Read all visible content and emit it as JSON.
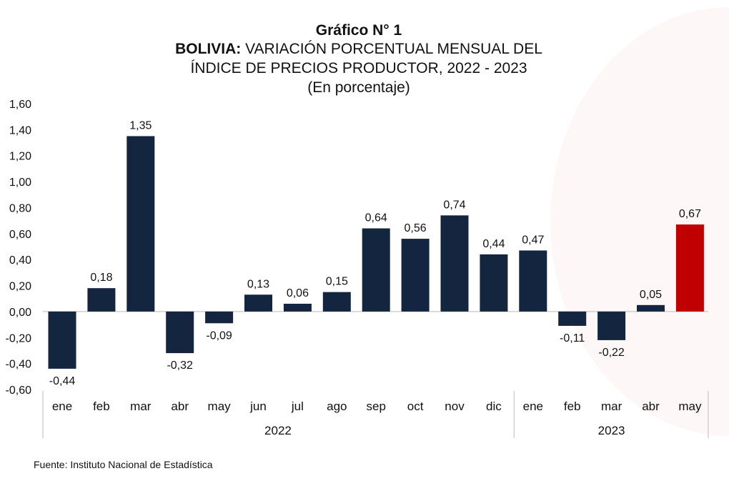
{
  "chart_data": {
    "type": "bar",
    "title_line1": "Gráfico N° 1",
    "title_bold": "BOLIVIA:",
    "title_line2": "VARIACIÓN PORCENTUAL MENSUAL DEL",
    "title_line3": "ÍNDICE DE PRECIOS PRODUCTOR, 2022 - 2023",
    "subtitle": "(En porcentaje)",
    "categories": [
      "ene",
      "feb",
      "mar",
      "abr",
      "may",
      "jun",
      "jul",
      "ago",
      "sep",
      "oct",
      "nov",
      "dic",
      "ene",
      "feb",
      "mar",
      "abr",
      "may"
    ],
    "groups": [
      {
        "label": "2022",
        "count": 12
      },
      {
        "label": "2023",
        "count": 5
      }
    ],
    "values": [
      -0.44,
      0.18,
      1.35,
      -0.32,
      -0.09,
      0.13,
      0.06,
      0.15,
      0.64,
      0.56,
      0.74,
      0.44,
      0.47,
      -0.11,
      -0.22,
      0.05,
      0.67
    ],
    "data_labels": [
      "-0,44",
      "0,18",
      "1,35",
      "-0,32",
      "-0,09",
      "0,13",
      "0,06",
      "0,15",
      "0,64",
      "0,56",
      "0,74",
      "0,44",
      "0,47",
      "-0,11",
      "-0,22",
      "0,05",
      "0,67"
    ],
    "ylim": [
      -0.6,
      1.6
    ],
    "yticks": [
      "1,60",
      "1,40",
      "1,20",
      "1,00",
      "0,80",
      "0,60",
      "0,40",
      "0,20",
      "0,00",
      "-0,20",
      "-0,40",
      "-0,60"
    ],
    "grid": false,
    "colors": {
      "default": "#14253f",
      "highlight": "#c00000"
    },
    "highlight_index": 16
  },
  "source": "Fuente: Instituto Nacional de Estadística"
}
